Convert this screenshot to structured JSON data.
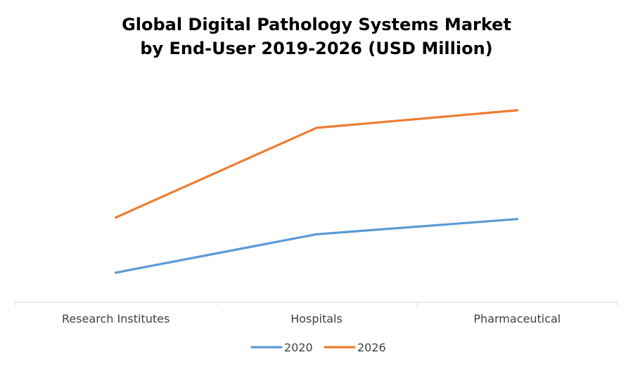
{
  "chart_data": {
    "type": "line",
    "title_line1": "Global Digital Pathology Systems Market",
    "title_line2": "by End-User 2019-2026 (USD Million)",
    "title": "Global Digital Pathology Systems Market by End-User 2019-2026 (USD Million)",
    "xlabel": "",
    "ylabel": "",
    "categories": [
      "Research Institutes",
      "Hospitals",
      "Pharmaceutical"
    ],
    "series": [
      {
        "name": "2020",
        "color": "#5b9bd5",
        "values": [
          37,
          85,
          104
        ]
      },
      {
        "name": "2026",
        "color": "#ed7d31",
        "values": [
          106,
          218,
          240
        ]
      }
    ],
    "ylim": [
      0,
      290
    ],
    "y_axis_visible": false,
    "grid": false,
    "legend_position": "bottom"
  }
}
